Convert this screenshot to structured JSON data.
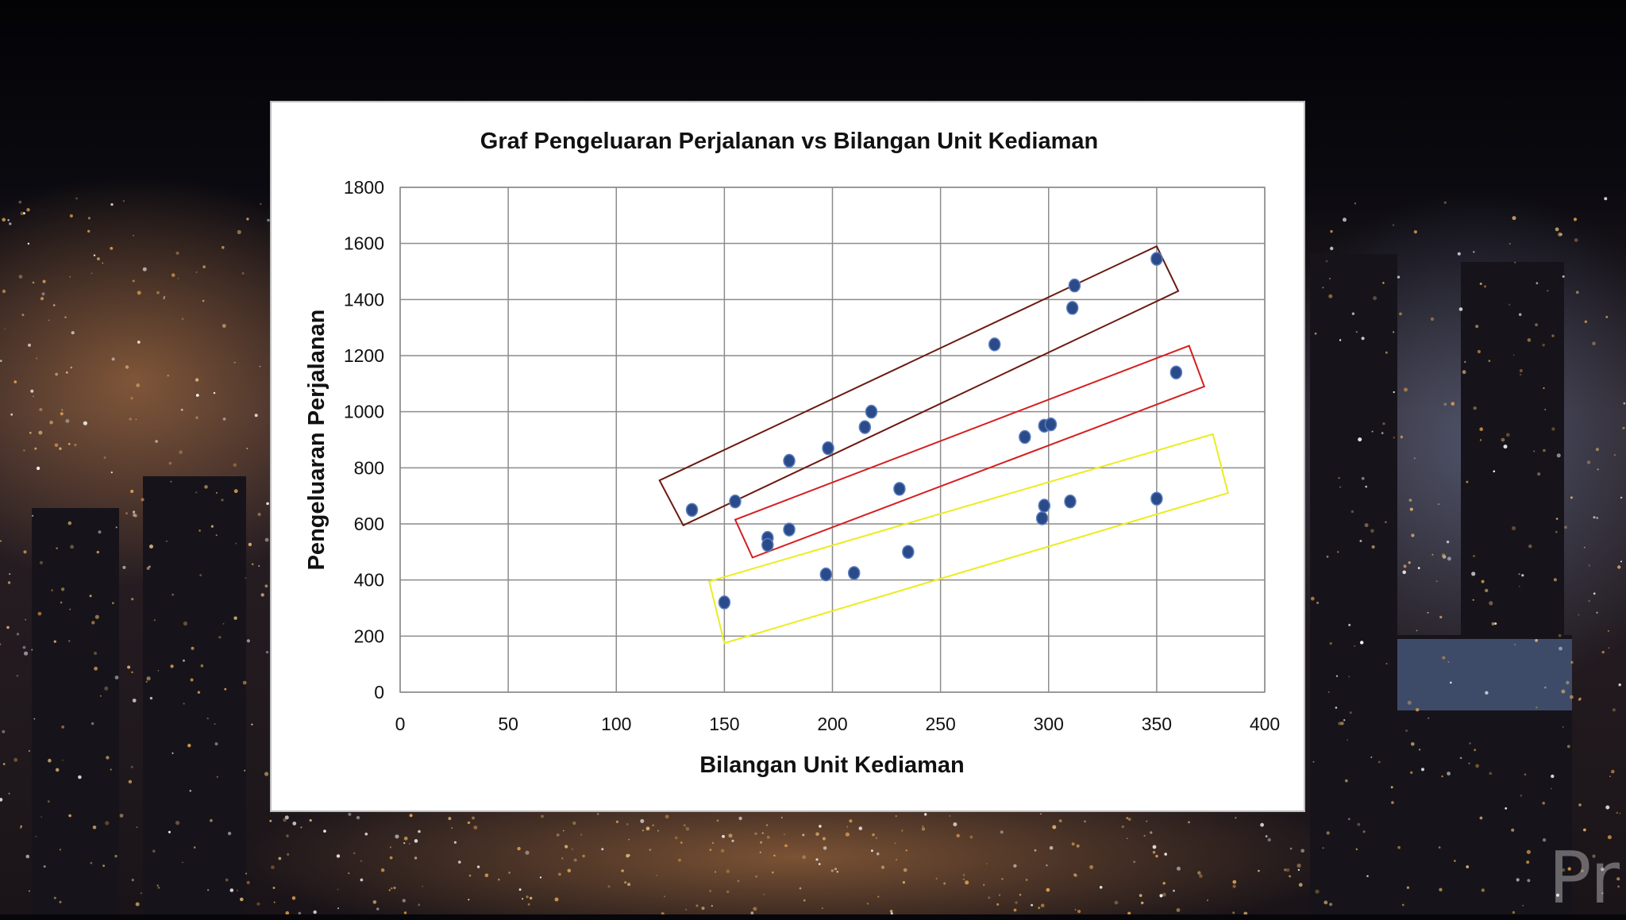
{
  "chart_data": {
    "type": "scatter",
    "title": "Graf Pengeluaran Perjalanan vs Bilangan Unit Kediaman",
    "xlabel": "Bilangan Unit Kediaman",
    "ylabel": "Pengeluaran Perjalanan",
    "xlim": [
      0,
      400
    ],
    "ylim": [
      0,
      1800
    ],
    "xticks": [
      0,
      50,
      100,
      150,
      200,
      250,
      300,
      350,
      400
    ],
    "yticks": [
      0,
      200,
      400,
      600,
      800,
      1000,
      1200,
      1400,
      1600,
      1800
    ],
    "grid": true,
    "legend": "none",
    "marker_color": "#2b4a8a",
    "points": [
      {
        "x": 135,
        "y": 650
      },
      {
        "x": 155,
        "y": 680
      },
      {
        "x": 150,
        "y": 320
      },
      {
        "x": 170,
        "y": 550
      },
      {
        "x": 170,
        "y": 525
      },
      {
        "x": 180,
        "y": 580
      },
      {
        "x": 180,
        "y": 825
      },
      {
        "x": 197,
        "y": 420
      },
      {
        "x": 198,
        "y": 870
      },
      {
        "x": 210,
        "y": 425
      },
      {
        "x": 215,
        "y": 945
      },
      {
        "x": 218,
        "y": 1000
      },
      {
        "x": 231,
        "y": 725
      },
      {
        "x": 235,
        "y": 500
      },
      {
        "x": 275,
        "y": 1240
      },
      {
        "x": 289,
        "y": 910
      },
      {
        "x": 297,
        "y": 620
      },
      {
        "x": 298,
        "y": 665
      },
      {
        "x": 298,
        "y": 950
      },
      {
        "x": 301,
        "y": 955
      },
      {
        "x": 310,
        "y": 680
      },
      {
        "x": 311,
        "y": 1370
      },
      {
        "x": 312,
        "y": 1450
      },
      {
        "x": 350,
        "y": 690
      },
      {
        "x": 350,
        "y": 1545
      },
      {
        "x": 359,
        "y": 1140
      }
    ],
    "annotations": [
      {
        "shape": "rectangle",
        "color": "#6b1a12",
        "corners": [
          [
            120,
            755
          ],
          [
            350,
            1590
          ],
          [
            360,
            1430
          ],
          [
            131,
            595
          ]
        ]
      },
      {
        "shape": "rectangle",
        "color": "#d42020",
        "corners": [
          [
            155,
            615
          ],
          [
            365,
            1235
          ],
          [
            372,
            1090
          ],
          [
            163,
            480
          ]
        ]
      },
      {
        "shape": "rectangle",
        "color": "#ecec20",
        "corners": [
          [
            143,
            395
          ],
          [
            376,
            920
          ],
          [
            383,
            710
          ],
          [
            150,
            175
          ]
        ]
      }
    ]
  },
  "background": {
    "sky_color": "#07060a",
    "city_glow_color": "#e0a050"
  },
  "logo_text": "Pr"
}
